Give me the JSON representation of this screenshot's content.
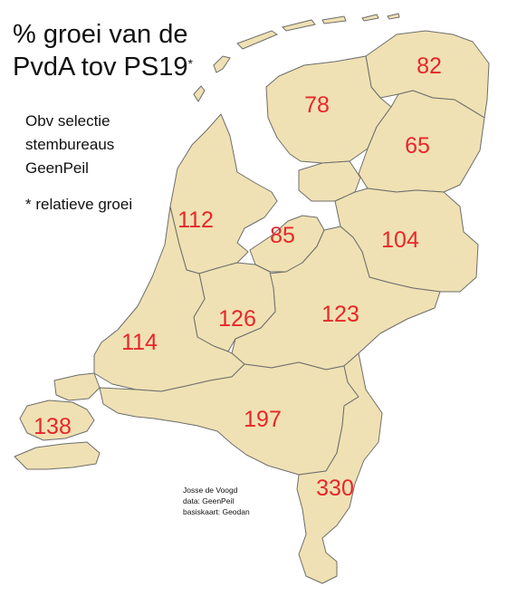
{
  "title": {
    "line1": "% groei van de",
    "line2": "PvdA tov PS19",
    "superscript": "*"
  },
  "subtitle": {
    "line1": "Obv selectie",
    "line2": "stembureaus",
    "line3": "GeenPeil"
  },
  "footnote": "* relatieve groei",
  "credits": {
    "author": "Josse de Voogd",
    "data": "data: GeenPeil",
    "basemap": "basiskaart: Geodan"
  },
  "colors": {
    "land": "#efe1b3",
    "border": "#6d6d6d",
    "value_text": "#e8262b"
  },
  "regions": [
    {
      "id": "groningen",
      "value": "82"
    },
    {
      "id": "friesland",
      "value": "78"
    },
    {
      "id": "drenthe",
      "value": "65"
    },
    {
      "id": "noord-holland",
      "value": "112"
    },
    {
      "id": "flevoland",
      "value": "85"
    },
    {
      "id": "overijssel",
      "value": "104"
    },
    {
      "id": "utrecht",
      "value": "126"
    },
    {
      "id": "gelderland",
      "value": "123"
    },
    {
      "id": "zuid-holland",
      "value": "114"
    },
    {
      "id": "zeeland",
      "value": "138"
    },
    {
      "id": "noord-brabant",
      "value": "197"
    },
    {
      "id": "limburg",
      "value": "330"
    }
  ]
}
